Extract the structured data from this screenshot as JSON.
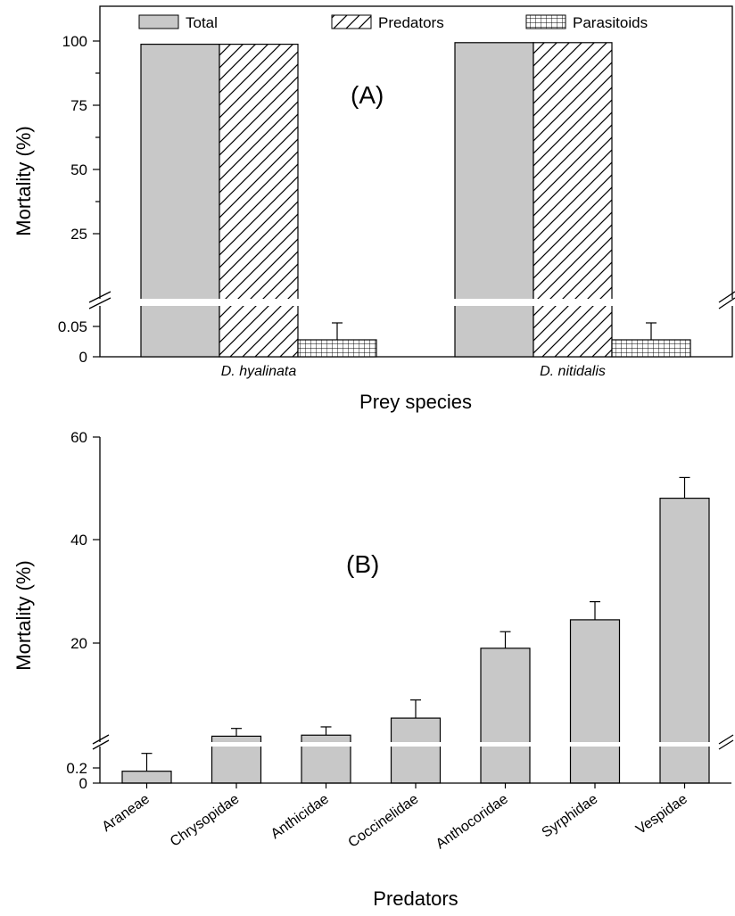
{
  "chart_data": [
    {
      "type": "bar",
      "panel_label": "(A)",
      "categories": [
        "D. hyalinata",
        "D. nitidalis"
      ],
      "series": [
        {
          "name": "Total",
          "values": [
            99,
            99.5
          ],
          "fill": "#c8c8c8",
          "pattern": "solid"
        },
        {
          "name": "Predators",
          "values": [
            99,
            99.5
          ],
          "fill": "#ffffff",
          "pattern": "diagonal-hatch"
        },
        {
          "name": "Parasitoids",
          "values": [
            0.02,
            0.02
          ],
          "errors": [
            0.02,
            0.02
          ],
          "fill": "#ffffff",
          "pattern": "grid-hatch"
        }
      ],
      "xlabel": "Prey species",
      "ylabel": "Mortality (%)",
      "axis_break": true,
      "y_lower_ticks": [
        "0",
        "0.05"
      ],
      "y_upper_ticks": [
        "25",
        "50",
        "75",
        "100"
      ],
      "legend_position": "top"
    },
    {
      "type": "bar",
      "panel_label": "(B)",
      "categories": [
        "Araneae",
        "Chrysopidae",
        "Anthicidae",
        "Coccinelidae",
        "Anthocoridae",
        "Syrphidae",
        "Vespidae"
      ],
      "values": [
        0.1,
        2,
        2.2,
        5.5,
        19,
        24.5,
        48
      ],
      "errors": [
        0.15,
        1.5,
        1.6,
        3.5,
        3.2,
        3.5,
        4
      ],
      "fill": "#c8c8c8",
      "xlabel": "Predators",
      "ylabel": "Mortality (%)",
      "axis_break": true,
      "y_lower_ticks": [
        "0",
        "0.2"
      ],
      "y_upper_ticks": [
        "20",
        "40",
        "60"
      ]
    }
  ]
}
